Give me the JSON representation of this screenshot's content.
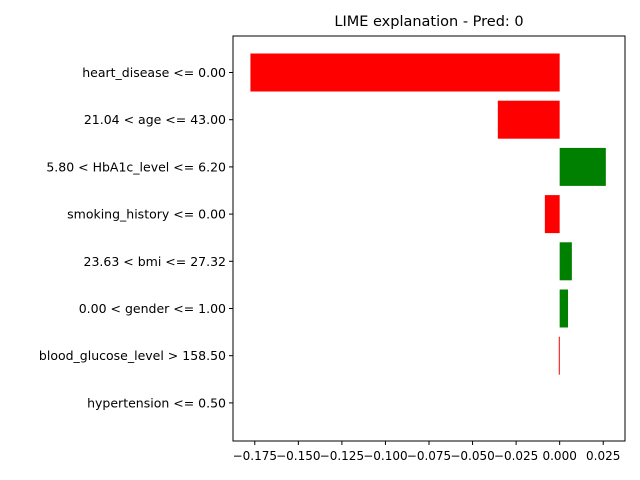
{
  "chart_data": {
    "type": "bar",
    "orientation": "horizontal",
    "title": "LIME explanation - Pred: 0",
    "xlabel": "",
    "ylabel": "",
    "categories": [
      "heart_disease <= 0.00",
      "21.04 < age <= 43.00",
      "5.80 < HbA1c_level <= 6.20",
      "smoking_history <= 0.00",
      "23.63 < bmi <= 27.32",
      "0.00 < gender <= 1.00",
      "blood_glucose_level > 158.50",
      "hypertension <= 0.50"
    ],
    "values": [
      -0.1775,
      -0.0355,
      0.0265,
      -0.0085,
      0.007,
      0.0048,
      -0.0005,
      0.0
    ],
    "positive_color": "#008000",
    "negative_color": "#ff0000",
    "xlim": [
      -0.1875,
      0.0375
    ],
    "xticks": [
      -0.175,
      -0.15,
      -0.125,
      -0.1,
      -0.075,
      -0.05,
      -0.025,
      0.0,
      0.025
    ],
    "xtick_labels": [
      "−0.175",
      "−0.150",
      "−0.125",
      "−0.100",
      "−0.075",
      "−0.050",
      "−0.025",
      "0.000",
      "0.025"
    ],
    "grid": false,
    "legend": "none"
  }
}
